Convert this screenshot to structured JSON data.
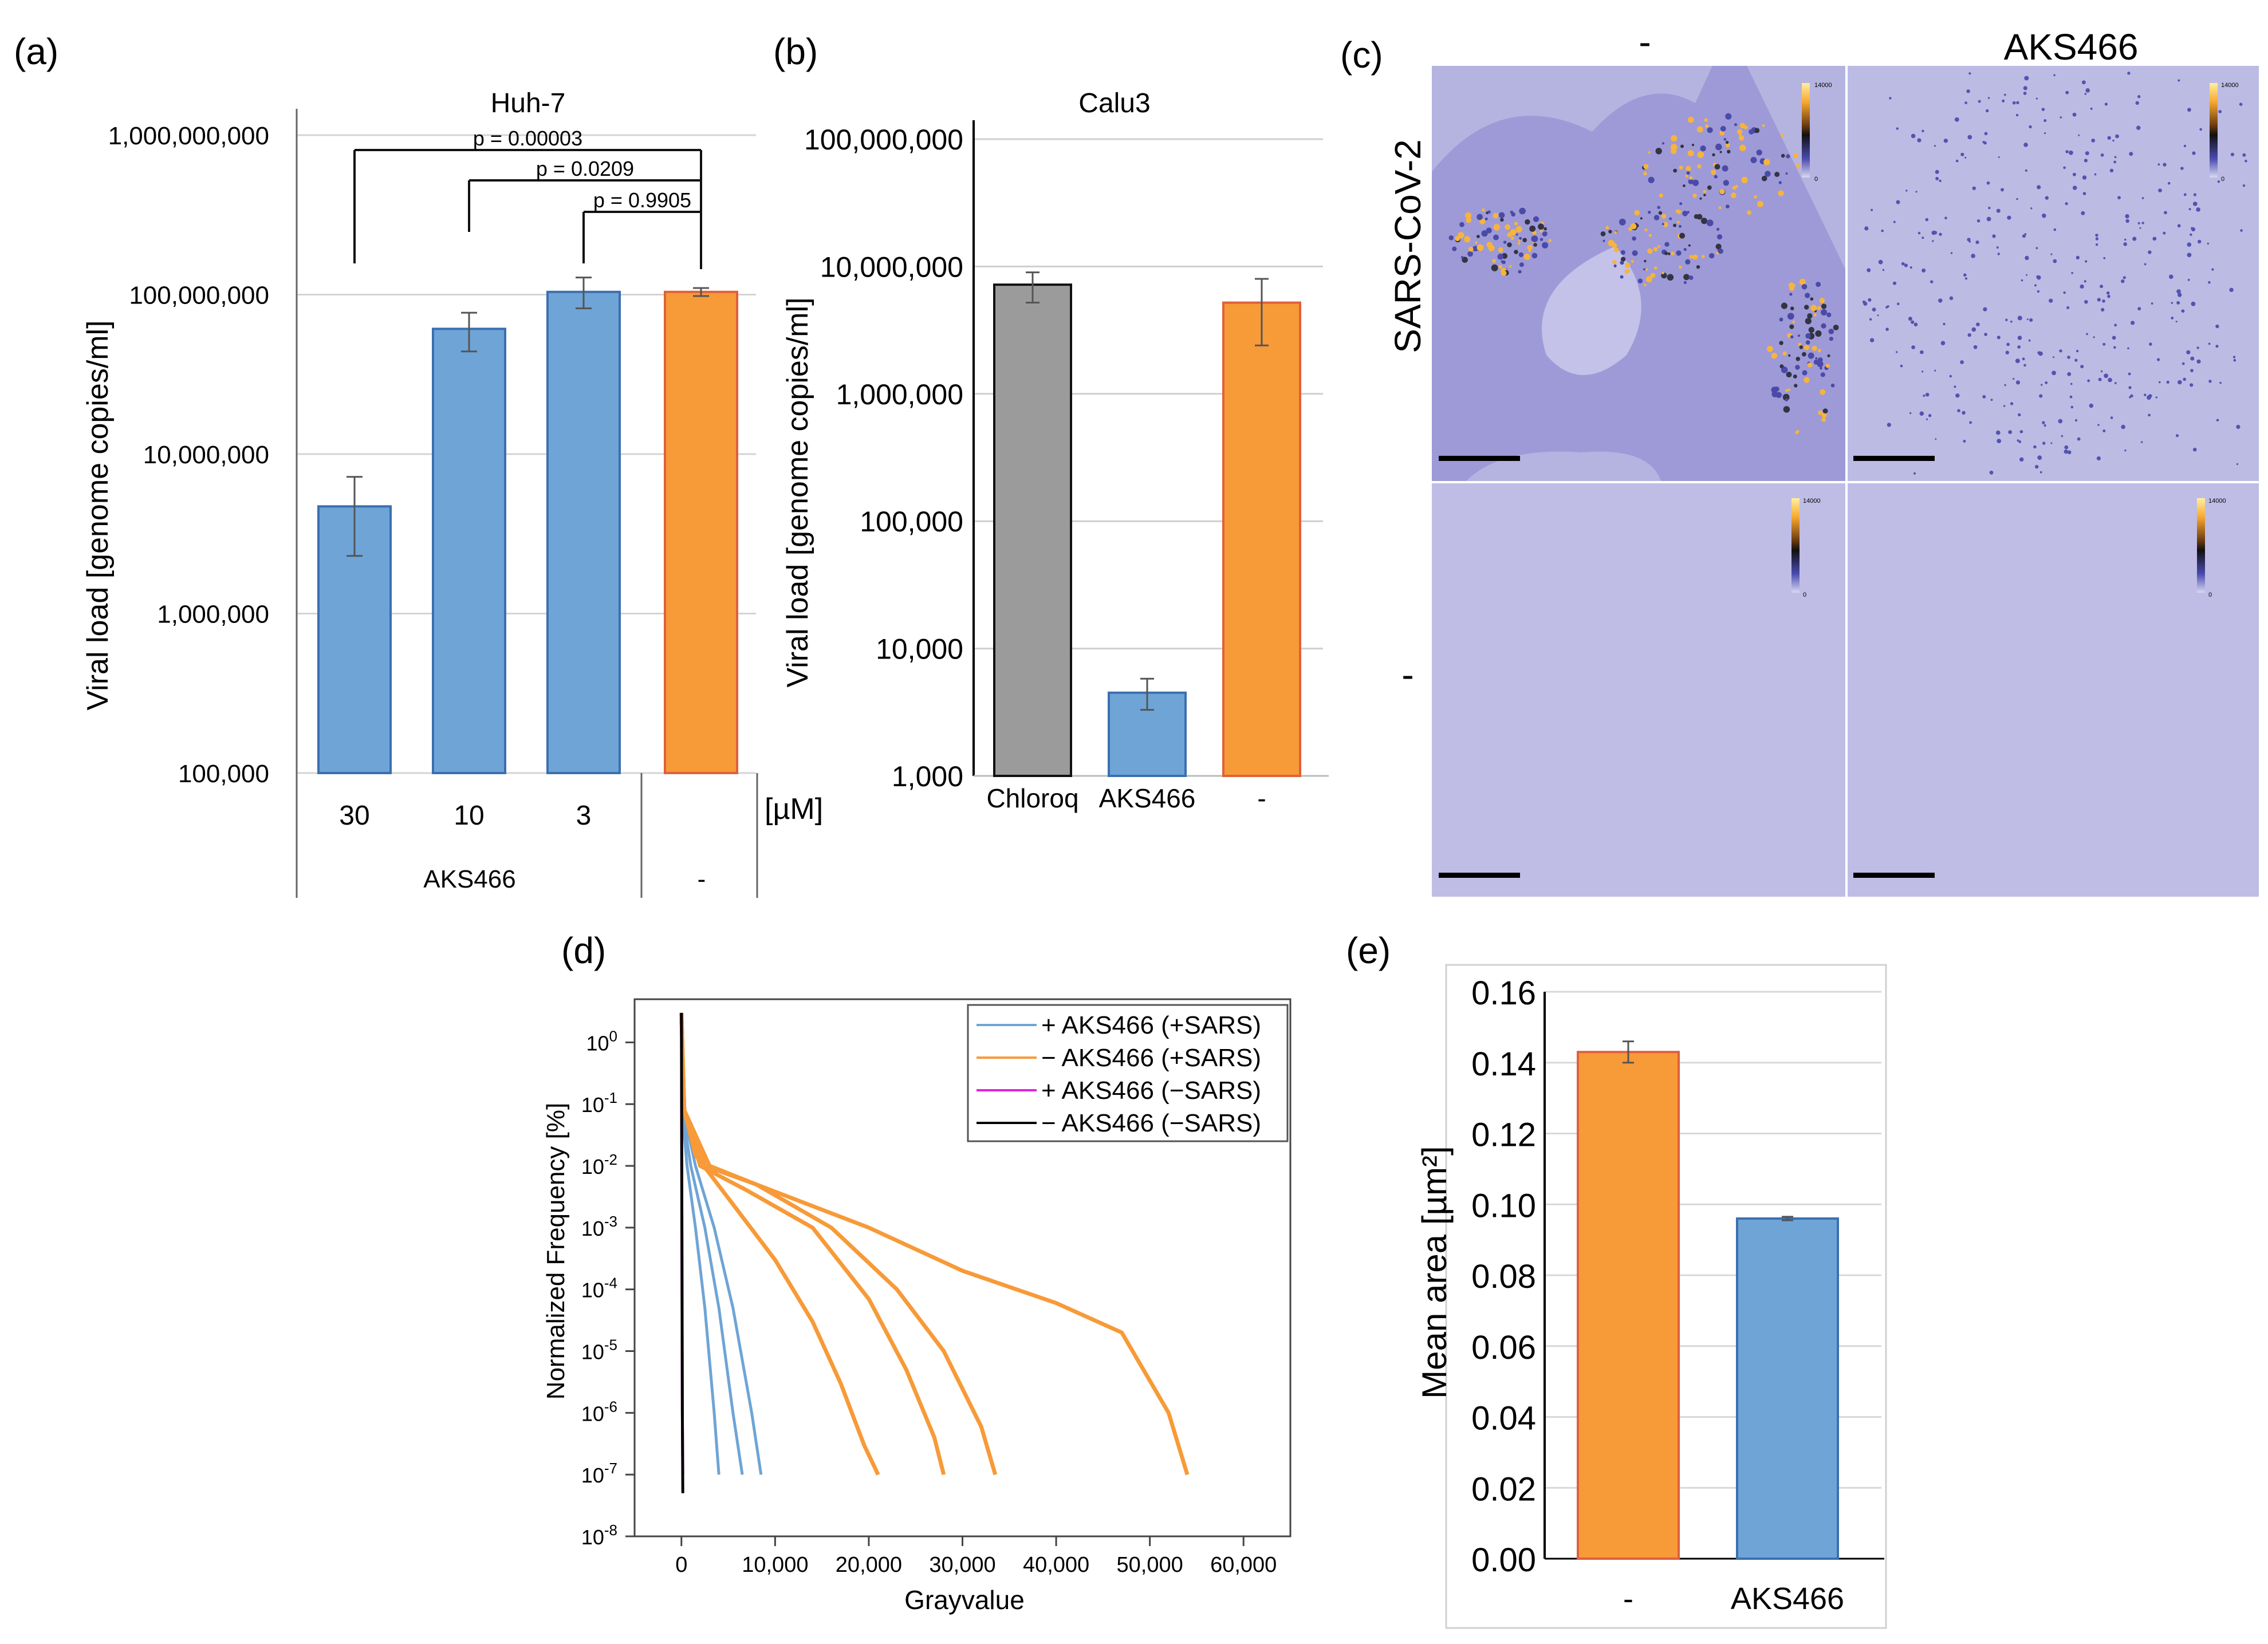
{
  "figure": {
    "panel_labels": {
      "a": "(a)",
      "b": "(b)",
      "c": "(c)",
      "d": "(d)",
      "e": "(e)"
    },
    "panel_c": {
      "col_headers": [
        "-",
        "AKS466"
      ],
      "row_headers": [
        "SARS-CoV-2",
        "-"
      ],
      "colorbar_max": "14000",
      "colorbar_min": "0"
    }
  },
  "chart_data": [
    {
      "panel": "a",
      "type": "bar",
      "title": "Huh-7",
      "ylabel": "Viral load [genome copies/ml]",
      "yscale": "log",
      "ylim": [
        100000,
        1000000000
      ],
      "yticks": [
        100000,
        1000000,
        10000000,
        100000000,
        1000000000
      ],
      "ytick_labels": [
        "100,000",
        "1,000,000",
        "10,000,000",
        "100,000,000",
        "1,000,000,000"
      ],
      "categories": [
        "30",
        "10",
        "3",
        ""
      ],
      "group_labels": [
        "AKS466",
        "-"
      ],
      "unit_label": "[µM]",
      "values": [
        4700000,
        61000000,
        104000000,
        104000000
      ],
      "err_low": [
        2300000,
        44000000,
        82000000,
        98000000
      ],
      "err_high": [
        7200000,
        77000000,
        128000000,
        110000000
      ],
      "colors": [
        "#6fa4d6",
        "#6fa4d6",
        "#6fa4d6",
        "#f79a38"
      ],
      "significance": [
        {
          "label": "p = 0.00003",
          "from": 0,
          "to": 3
        },
        {
          "label": "p = 0.0209",
          "from": 1,
          "to": 3
        },
        {
          "label": "p = 0.9905",
          "from": 2,
          "to": 3
        }
      ]
    },
    {
      "panel": "b",
      "type": "bar",
      "title": "Calu3",
      "ylabel": "Viral load [genome copies/ml]",
      "yscale": "log",
      "ylim": [
        1000,
        100000000
      ],
      "yticks": [
        1000,
        10000,
        100000,
        1000000,
        10000000,
        100000000
      ],
      "ytick_labels": [
        "1,000",
        "10,000",
        "100,000",
        "1,000,000",
        "10,000,000",
        "100,000,000"
      ],
      "categories": [
        "Chloroq",
        "AKS466",
        "-"
      ],
      "values": [
        7200000,
        4500,
        5200000
      ],
      "err_low": [
        5200000,
        3300,
        2400000
      ],
      "err_high": [
        9000000,
        5800,
        8000000
      ],
      "colors": [
        "#9b9b9b",
        "#6fa4d6",
        "#f79a38"
      ]
    },
    {
      "panel": "d",
      "type": "line",
      "xlabel": "Grayvalue",
      "ylabel": "Normalized Frequency [%]",
      "xscale": "linear",
      "yscale": "log",
      "xlim": [
        -5000,
        65000
      ],
      "ylim": [
        1e-08,
        5
      ],
      "xticks": [
        0,
        10000,
        20000,
        30000,
        40000,
        50000,
        60000
      ],
      "xtick_labels": [
        "0",
        "10,000",
        "20,000",
        "30,000",
        "40,000",
        "50,000",
        "60,000"
      ],
      "ytick_exponents": [
        "-8",
        "-7",
        "-6",
        "-5",
        "-4",
        "-3",
        "-2",
        "-1",
        "0"
      ],
      "ytick_base": "10",
      "legend": [
        {
          "label": "+ AKS466 (+SARS)",
          "color": "#6fa4d6"
        },
        {
          "label": "− AKS466 (+SARS)",
          "color": "#f79a38"
        },
        {
          "label": "+ AKS466 (−SARS)",
          "color": "#e020e0"
        },
        {
          "label": "− AKS466 (−SARS)",
          "color": "#000000"
        }
      ],
      "series": [
        {
          "name": "+ AKS466 (+SARS) #1",
          "color": "#6fa4d6",
          "x": [
            0,
            200,
            600,
            1500,
            2500,
            3500,
            4000
          ],
          "y": [
            3,
            0.05,
            0.01,
            0.001,
            5e-05,
            1e-06,
            1e-07
          ]
        },
        {
          "name": "+ AKS466 (+SARS) #2",
          "color": "#6fa4d6",
          "x": [
            0,
            300,
            1000,
            2500,
            4000,
            5500,
            6500
          ],
          "y": [
            3,
            0.05,
            0.01,
            0.001,
            5e-05,
            1e-06,
            1e-07
          ]
        },
        {
          "name": "+ AKS466 (+SARS) #3",
          "color": "#6fa4d6",
          "x": [
            0,
            400,
            1500,
            3500,
            5500,
            7500,
            8500
          ],
          "y": [
            3,
            0.06,
            0.01,
            0.001,
            5e-05,
            1e-06,
            1e-07
          ]
        },
        {
          "name": "− AKS466 (+SARS) #1",
          "color": "#f79a38",
          "x": [
            0,
            300,
            1500,
            5000,
            10000,
            14000,
            17000,
            19500,
            21000
          ],
          "y": [
            3,
            0.08,
            0.015,
            0.003,
            0.0003,
            3e-05,
            3e-06,
            3e-07,
            1e-07
          ]
        },
        {
          "name": "− AKS466 (+SARS) #2",
          "color": "#f79a38",
          "x": [
            0,
            300,
            2000,
            7000,
            14000,
            20000,
            24000,
            27000,
            28000
          ],
          "y": [
            3,
            0.08,
            0.01,
            0.004,
            0.001,
            7e-05,
            5e-06,
            4e-07,
            1e-07
          ]
        },
        {
          "name": "− AKS466 (+SARS) #3",
          "color": "#f79a38",
          "x": [
            0,
            300,
            2500,
            8000,
            16000,
            23000,
            28000,
            32000,
            33500
          ],
          "y": [
            3,
            0.08,
            0.01,
            0.005,
            0.001,
            0.0001,
            1e-05,
            6e-07,
            1e-07
          ]
        },
        {
          "name": "− AKS466 (+SARS) #4",
          "color": "#f79a38",
          "x": [
            0,
            300,
            3000,
            8000,
            20000,
            30000,
            40000,
            47000,
            52000,
            54000
          ],
          "y": [
            3,
            0.08,
            0.01,
            0.005,
            0.001,
            0.0002,
            6e-05,
            2e-05,
            1e-06,
            1e-07
          ]
        },
        {
          "name": "+ AKS466 (−SARS)",
          "color": "#e020e0",
          "x": [
            0,
            50,
            100,
            150
          ],
          "y": [
            3,
            0.001,
            1e-06,
            1e-07
          ]
        },
        {
          "name": "− AKS466 (−SARS)",
          "color": "#000000",
          "x": [
            0,
            50,
            100,
            150
          ],
          "y": [
            3,
            0.001,
            1e-06,
            5e-08
          ]
        }
      ]
    },
    {
      "panel": "e",
      "type": "bar",
      "ylabel": "Mean area [µm²]",
      "ylim": [
        0,
        0.16
      ],
      "yticks": [
        0,
        0.02,
        0.04,
        0.06,
        0.08,
        0.1,
        0.12,
        0.14,
        0.16
      ],
      "ytick_labels": [
        "0.00",
        "0.02",
        "0.04",
        "0.06",
        "0.08",
        "0.10",
        "0.12",
        "0.14",
        "0.16"
      ],
      "categories": [
        "-",
        "AKS466"
      ],
      "values": [
        0.143,
        0.096
      ],
      "err_low": [
        0.14,
        0.0955
      ],
      "err_high": [
        0.146,
        0.0965
      ],
      "colors": [
        "#f79a38",
        "#6fa4d6"
      ]
    }
  ]
}
